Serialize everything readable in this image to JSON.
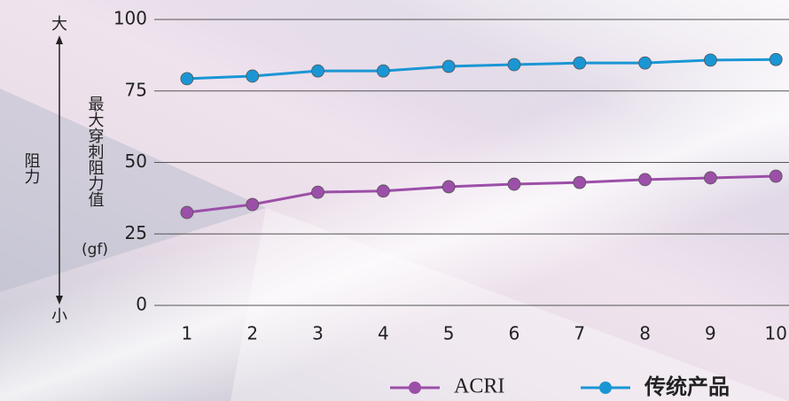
{
  "chart_data": {
    "type": "line",
    "y_label": "最大穿刺阻力值",
    "y_unit": "(gf)",
    "arrow_top": "大",
    "arrow_bottom": "小",
    "side_label": "阻力",
    "x": [
      1,
      2,
      3,
      4,
      5,
      6,
      7,
      8,
      9,
      10
    ],
    "xlim": [
      0.5,
      10.2
    ],
    "xticks": [
      1,
      2,
      3,
      4,
      5,
      6,
      7,
      8,
      9,
      10
    ],
    "ylim": [
      0,
      100
    ],
    "yticks": [
      0,
      25,
      50,
      75,
      100
    ],
    "grid": true,
    "legend": "bottom",
    "series": [
      {
        "name": "ACRI",
        "color": "#9c4fa8",
        "values": [
          32.5,
          35.3,
          39.6,
          40,
          41.5,
          42.4,
          43,
          44,
          44.6,
          45.2
        ]
      },
      {
        "name": "传统产品",
        "color": "#1a96d4",
        "values": [
          79.3,
          80.2,
          82,
          82,
          83.6,
          84.2,
          84.8,
          84.8,
          85.8,
          86
        ]
      }
    ]
  }
}
